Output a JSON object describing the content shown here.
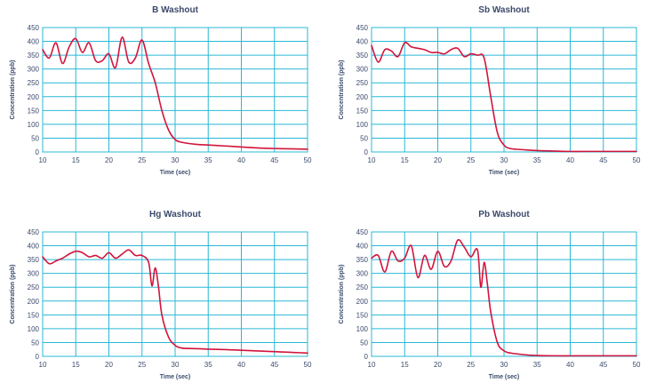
{
  "colors": {
    "grid": "#29b8d6",
    "line": "#d1143c",
    "text": "#3a4a6b"
  },
  "chart_data": [
    {
      "type": "line",
      "title": "B Washout",
      "xlabel": "Time (sec)",
      "ylabel": "Concentration (ppb)",
      "xlim": [
        10,
        50
      ],
      "ylim": [
        0,
        450
      ],
      "xticks": [
        "10",
        "15",
        "20",
        "25",
        "30",
        "35",
        "40",
        "45",
        "50"
      ],
      "yticks": [
        "0",
        "50",
        "100",
        "150",
        "200",
        "250",
        "300",
        "350",
        "400",
        "450"
      ],
      "grid": true,
      "series": [
        {
          "x": [
            10,
            11,
            12,
            13,
            14,
            15,
            16,
            17,
            18,
            19,
            20,
            21,
            22,
            23,
            24,
            25,
            26,
            27,
            28,
            29,
            30,
            31,
            33,
            35,
            38,
            40,
            42,
            44,
            46,
            48,
            50
          ],
          "y": [
            370,
            340,
            395,
            320,
            380,
            410,
            360,
            395,
            330,
            330,
            355,
            305,
            415,
            325,
            340,
            405,
            320,
            250,
            150,
            80,
            45,
            35,
            28,
            25,
            21,
            18,
            15,
            13,
            12,
            11,
            10
          ]
        }
      ]
    },
    {
      "type": "line",
      "title": "Sb Washout",
      "xlabel": "Time (sec)",
      "ylabel": "Concentration (ppb)",
      "xlim": [
        10,
        50
      ],
      "ylim": [
        0,
        450
      ],
      "xticks": [
        "10",
        "15",
        "20",
        "25",
        "30",
        "35",
        "40",
        "45",
        "50"
      ],
      "yticks": [
        "0",
        "50",
        "100",
        "150",
        "200",
        "250",
        "300",
        "350",
        "400",
        "450"
      ],
      "grid": true,
      "series": [
        {
          "x": [
            10,
            11,
            12,
            13,
            14,
            15,
            16,
            17,
            18,
            19,
            20,
            21,
            22,
            23,
            24,
            25,
            26,
            27,
            28,
            29,
            30,
            31,
            33,
            35,
            38,
            40,
            42,
            44,
            46,
            48,
            50
          ],
          "y": [
            385,
            325,
            370,
            365,
            345,
            395,
            380,
            375,
            370,
            360,
            360,
            355,
            370,
            375,
            345,
            355,
            350,
            340,
            200,
            70,
            25,
            12,
            8,
            5,
            3,
            2,
            2,
            2,
            2,
            2,
            2
          ]
        }
      ]
    },
    {
      "type": "line",
      "title": "Hg Washout",
      "xlabel": "Time (sec)",
      "ylabel": "Concentration (ppb)",
      "xlim": [
        10,
        50
      ],
      "ylim": [
        0,
        450
      ],
      "xticks": [
        "10",
        "15",
        "20",
        "25",
        "30",
        "35",
        "40",
        "45",
        "50"
      ],
      "yticks": [
        "0",
        "50",
        "100",
        "150",
        "200",
        "250",
        "300",
        "350",
        "400",
        "450"
      ],
      "grid": true,
      "series": [
        {
          "x": [
            10,
            11,
            12,
            13,
            14,
            15,
            16,
            17,
            18,
            19,
            20,
            21,
            22,
            23,
            24,
            25,
            26,
            26.5,
            27,
            27.5,
            28,
            29,
            30,
            31,
            33,
            35,
            38,
            40,
            42,
            44,
            46,
            48,
            50
          ],
          "y": [
            360,
            335,
            345,
            355,
            370,
            380,
            375,
            360,
            365,
            355,
            375,
            355,
            370,
            385,
            365,
            365,
            340,
            255,
            320,
            250,
            150,
            70,
            40,
            30,
            28,
            26,
            24,
            22,
            20,
            18,
            16,
            14,
            12
          ]
        }
      ]
    },
    {
      "type": "line",
      "title": "Pb Washout",
      "xlabel": "Time (sec)",
      "ylabel": "Concentration (ppb)",
      "xlim": [
        10,
        50
      ],
      "ylim": [
        0,
        450
      ],
      "xticks": [
        "10",
        "15",
        "20",
        "25",
        "30",
        "35",
        "40",
        "45",
        "50"
      ],
      "yticks": [
        "0",
        "50",
        "100",
        "150",
        "200",
        "250",
        "300",
        "350",
        "400",
        "450"
      ],
      "grid": true,
      "series": [
        {
          "x": [
            10,
            11,
            12,
            13,
            14,
            15,
            16,
            17,
            18,
            19,
            20,
            21,
            22,
            23,
            24,
            25,
            26,
            26.5,
            27,
            27.5,
            28,
            29,
            30,
            31,
            33,
            35,
            38,
            40,
            42,
            44,
            46,
            48,
            50
          ],
          "y": [
            355,
            365,
            305,
            380,
            345,
            355,
            400,
            285,
            365,
            315,
            380,
            325,
            345,
            420,
            395,
            360,
            385,
            250,
            340,
            260,
            160,
            50,
            20,
            12,
            6,
            3,
            2,
            2,
            2,
            2,
            2,
            2,
            2
          ]
        }
      ]
    }
  ]
}
